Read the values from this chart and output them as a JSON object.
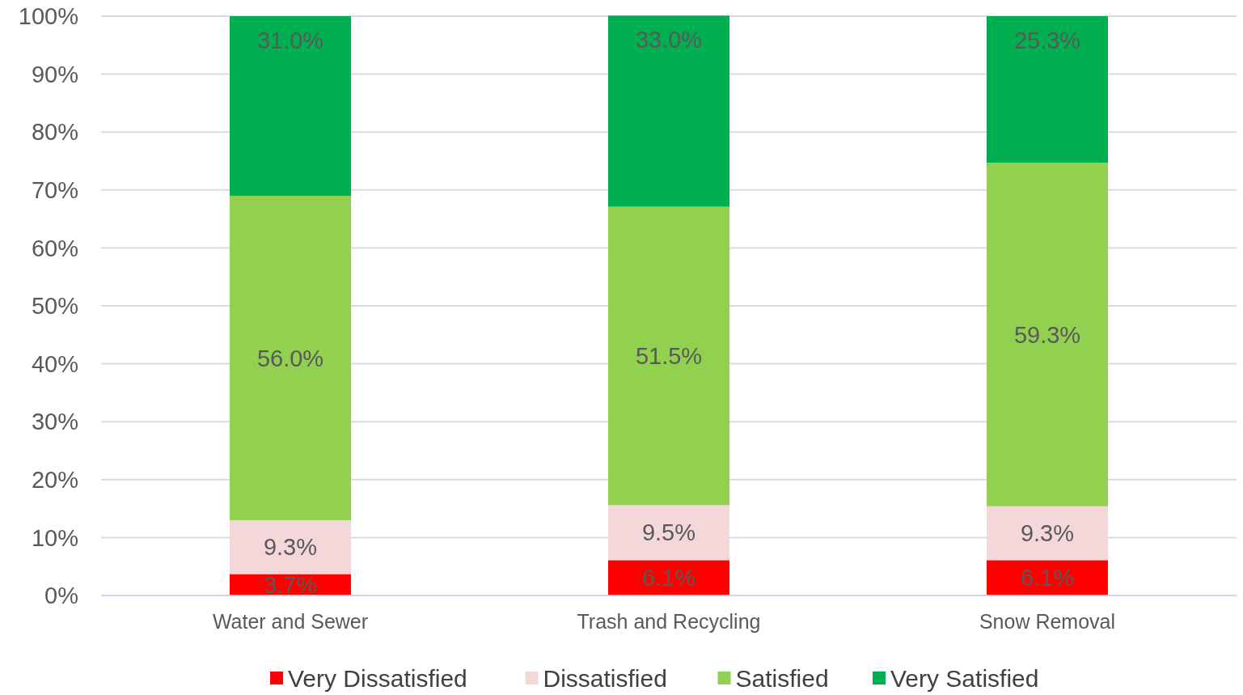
{
  "chart_data": {
    "type": "bar",
    "stacked": true,
    "categories": [
      "Water and Sewer",
      "Trash and Recycling",
      "Snow Removal"
    ],
    "series": [
      {
        "name": "Very Dissatisfied",
        "color": "#ff0000",
        "values": [
          3.7,
          6.1,
          6.1
        ],
        "value_labels": [
          "3.7%",
          "6.1%",
          "6.1%"
        ]
      },
      {
        "name": "Dissatisfied",
        "color": "#f4d7d9",
        "values": [
          9.3,
          9.5,
          9.3
        ],
        "value_labels": [
          "9.3%",
          "9.5%",
          "9.3%"
        ]
      },
      {
        "name": "Satisfied",
        "color": "#92d050",
        "values": [
          56.0,
          51.5,
          59.3
        ],
        "value_labels": [
          "56.0%",
          "51.5%",
          "59.3%"
        ]
      },
      {
        "name": "Very Satisfied",
        "color": "#00b050",
        "values": [
          31.0,
          33.0,
          25.3
        ],
        "value_labels": [
          "31.0%",
          "33.0%",
          "25.3%"
        ]
      }
    ],
    "ylim": [
      0,
      100
    ],
    "yticks": [
      {
        "value": 0,
        "label": "0%"
      },
      {
        "value": 10,
        "label": "10%"
      },
      {
        "value": 20,
        "label": "20%"
      },
      {
        "value": 30,
        "label": "30%"
      },
      {
        "value": 40,
        "label": "40%"
      },
      {
        "value": 50,
        "label": "50%"
      },
      {
        "value": 60,
        "label": "60%"
      },
      {
        "value": 70,
        "label": "70%"
      },
      {
        "value": 80,
        "label": "80%"
      },
      {
        "value": 90,
        "label": "90%"
      },
      {
        "value": 100,
        "label": "100%"
      }
    ],
    "grid": "y",
    "legend": "bottom"
  }
}
